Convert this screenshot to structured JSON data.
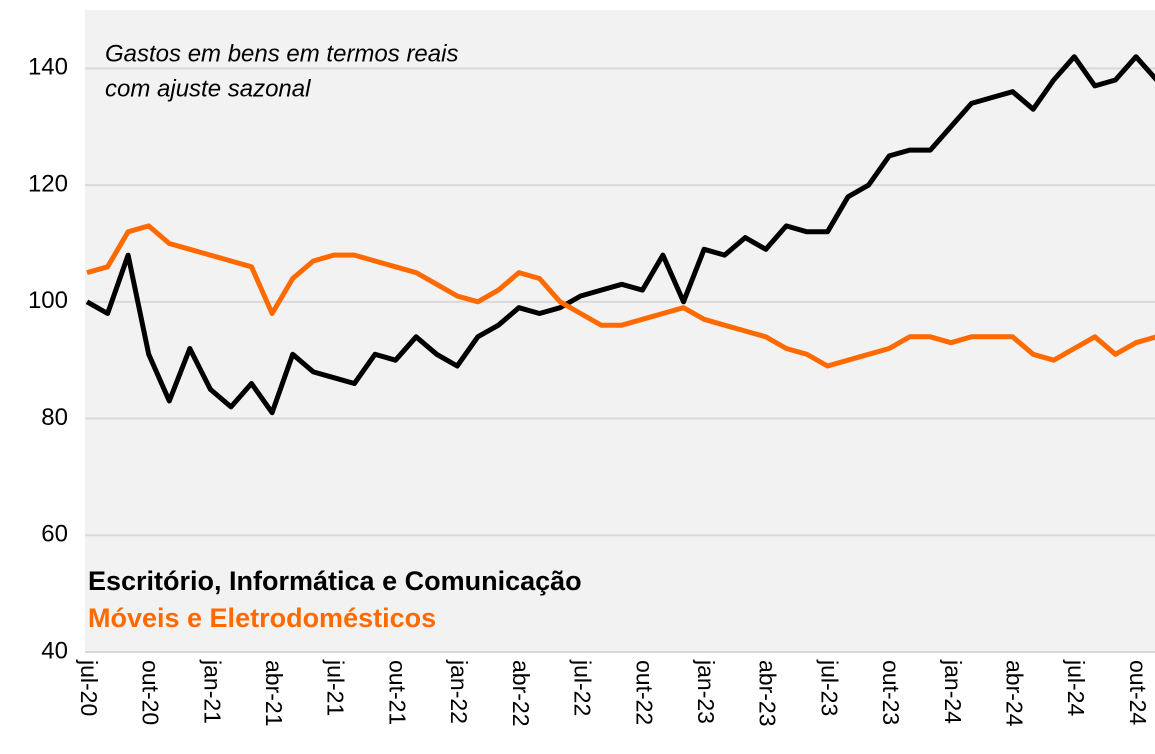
{
  "chart_data": {
    "type": "line",
    "annotation": [
      "Gastos em bens em termos reais",
      "com ajuste sazonal"
    ],
    "categories": [
      "jul-20",
      null,
      null,
      "out-20",
      null,
      null,
      "jan-21",
      null,
      null,
      "abr-21",
      null,
      null,
      "jul-21",
      null,
      null,
      "out-21",
      null,
      null,
      "jan-22",
      null,
      null,
      "abr-22",
      null,
      null,
      "jul-22",
      null,
      null,
      "out-22",
      null,
      null,
      "jan-23",
      null,
      null,
      "abr-23",
      null,
      null,
      "jul-23",
      null,
      null,
      "out-23",
      null,
      null,
      "jan-24",
      null,
      null,
      "abr-24",
      null,
      null,
      "jul-24",
      null,
      null,
      "out-24",
      null
    ],
    "series": [
      {
        "name": "Escritório, Informática e Comunicação",
        "color": "#000000",
        "values": [
          100,
          98,
          108,
          91,
          83,
          92,
          85,
          82,
          86,
          81,
          91,
          88,
          87,
          86,
          91,
          90,
          94,
          91,
          89,
          94,
          96,
          99,
          98,
          99,
          101,
          102,
          103,
          102,
          108,
          100,
          109,
          108,
          111,
          109,
          113,
          112,
          112,
          118,
          120,
          125,
          126,
          126,
          130,
          134,
          135,
          136,
          133,
          138,
          142,
          137,
          138,
          142,
          138
        ]
      },
      {
        "name": "Móveis e Eletrodomésticos",
        "color": "#ff6a00",
        "values": [
          105,
          106,
          112,
          113,
          110,
          109,
          108,
          107,
          106,
          98,
          104,
          107,
          108,
          108,
          107,
          106,
          105,
          103,
          101,
          100,
          102,
          105,
          104,
          100,
          98,
          96,
          96,
          97,
          98,
          99,
          97,
          96,
          95,
          94,
          92,
          91,
          89,
          90,
          91,
          92,
          94,
          94,
          93,
          94,
          94,
          94,
          91,
          90,
          92,
          94,
          91,
          93,
          94
        ]
      }
    ],
    "ylim": [
      40,
      150
    ],
    "yticks": [
      40,
      60,
      80,
      100,
      120,
      140
    ],
    "grid": true
  }
}
